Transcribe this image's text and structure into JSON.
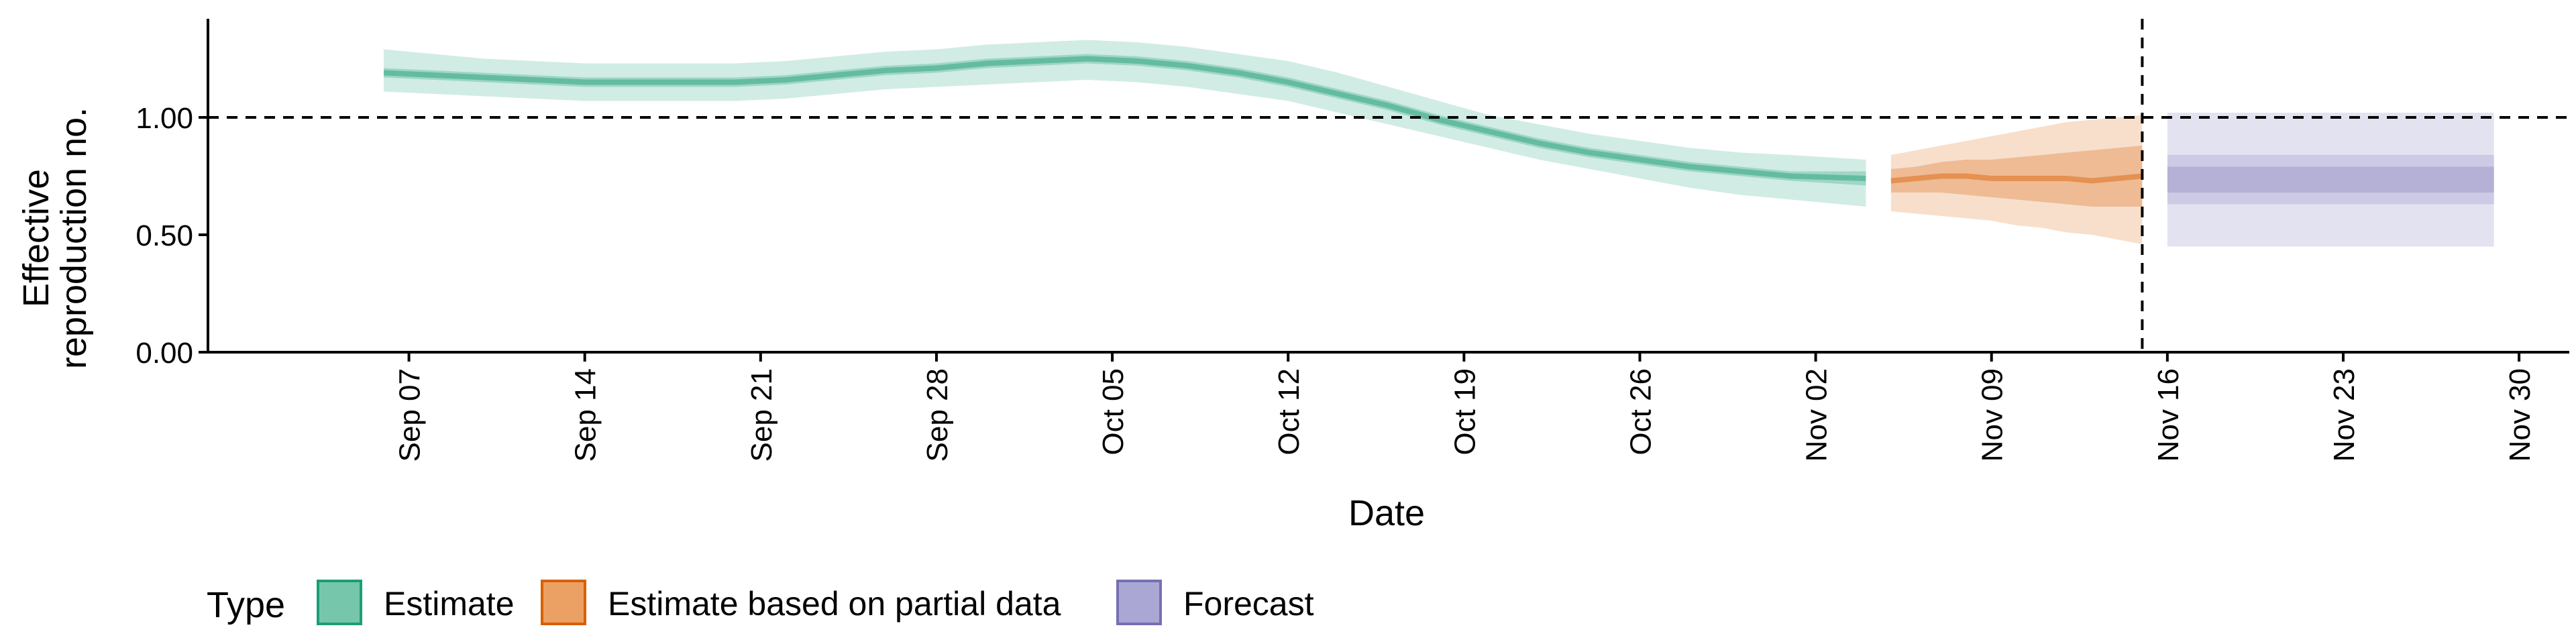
{
  "chart_data": {
    "type": "area",
    "title": "",
    "xlabel": "Date",
    "ylabel_lines": [
      "Effective",
      "reproduction no."
    ],
    "ylim": [
      0,
      1.42
    ],
    "y_ticks": [
      {
        "value": 0.0,
        "label": "0.00"
      },
      {
        "value": 0.5,
        "label": "0.50"
      },
      {
        "value": 1.0,
        "label": "1.00"
      }
    ],
    "x_range": [
      "2020-08-30",
      "2020-12-02"
    ],
    "x_ticks": [
      {
        "date": "2020-09-07",
        "label": "Sep 07"
      },
      {
        "date": "2020-09-14",
        "label": "Sep 14"
      },
      {
        "date": "2020-09-21",
        "label": "Sep 21"
      },
      {
        "date": "2020-09-28",
        "label": "Sep 28"
      },
      {
        "date": "2020-10-05",
        "label": "Oct 05"
      },
      {
        "date": "2020-10-12",
        "label": "Oct 12"
      },
      {
        "date": "2020-10-19",
        "label": "Oct 19"
      },
      {
        "date": "2020-10-26",
        "label": "Oct 26"
      },
      {
        "date": "2020-11-02",
        "label": "Nov 02"
      },
      {
        "date": "2020-11-09",
        "label": "Nov 09"
      },
      {
        "date": "2020-11-16",
        "label": "Nov 16"
      },
      {
        "date": "2020-11-23",
        "label": "Nov 23"
      },
      {
        "date": "2020-11-30",
        "label": "Nov 30"
      }
    ],
    "reference_lines": {
      "horizontal_y": 1.0,
      "vertical_date": "2020-11-15"
    },
    "legend": {
      "title": "Type",
      "position": "bottom",
      "entries": [
        {
          "label": "Estimate",
          "fill": "#76c6ab",
          "stroke": "#1b9e77"
        },
        {
          "label": "Estimate based on partial data",
          "fill": "#eba064",
          "stroke": "#d95f02"
        },
        {
          "label": "Forecast",
          "fill": "#aaa7d4",
          "stroke": "#7570b3"
        }
      ]
    },
    "series": [
      {
        "name": "Estimate",
        "fill": "#1b9e77",
        "x": [
          "2020-09-06",
          "2020-09-08",
          "2020-09-10",
          "2020-09-12",
          "2020-09-14",
          "2020-09-16",
          "2020-09-18",
          "2020-09-20",
          "2020-09-22",
          "2020-09-24",
          "2020-09-26",
          "2020-09-28",
          "2020-09-30",
          "2020-10-02",
          "2020-10-04",
          "2020-10-06",
          "2020-10-08",
          "2020-10-10",
          "2020-10-12",
          "2020-10-14",
          "2020-10-16",
          "2020-10-18",
          "2020-10-20",
          "2020-10-22",
          "2020-10-24",
          "2020-10-26",
          "2020-10-28",
          "2020-10-30",
          "2020-11-01",
          "2020-11-04"
        ],
        "median": [
          1.19,
          1.18,
          1.17,
          1.16,
          1.15,
          1.15,
          1.15,
          1.15,
          1.16,
          1.18,
          1.2,
          1.21,
          1.23,
          1.24,
          1.25,
          1.24,
          1.22,
          1.19,
          1.15,
          1.1,
          1.05,
          0.99,
          0.94,
          0.89,
          0.85,
          0.82,
          0.79,
          0.77,
          0.75,
          0.74
        ],
        "inner_lower": [
          1.17,
          1.16,
          1.15,
          1.14,
          1.13,
          1.13,
          1.13,
          1.13,
          1.14,
          1.16,
          1.18,
          1.19,
          1.21,
          1.22,
          1.23,
          1.22,
          1.2,
          1.17,
          1.13,
          1.08,
          1.03,
          0.97,
          0.92,
          0.87,
          0.83,
          0.8,
          0.77,
          0.75,
          0.73,
          0.71
        ],
        "inner_upper": [
          1.21,
          1.2,
          1.19,
          1.18,
          1.17,
          1.17,
          1.17,
          1.17,
          1.18,
          1.2,
          1.22,
          1.23,
          1.25,
          1.26,
          1.27,
          1.26,
          1.24,
          1.21,
          1.17,
          1.12,
          1.07,
          1.01,
          0.96,
          0.91,
          0.87,
          0.84,
          0.81,
          0.79,
          0.77,
          0.77
        ],
        "outer_lower": [
          1.11,
          1.1,
          1.09,
          1.08,
          1.07,
          1.07,
          1.07,
          1.07,
          1.08,
          1.1,
          1.12,
          1.13,
          1.14,
          1.15,
          1.16,
          1.15,
          1.13,
          1.1,
          1.07,
          1.02,
          0.97,
          0.92,
          0.87,
          0.82,
          0.78,
          0.74,
          0.7,
          0.67,
          0.65,
          0.62
        ],
        "outer_upper": [
          1.29,
          1.27,
          1.25,
          1.24,
          1.23,
          1.23,
          1.23,
          1.23,
          1.24,
          1.26,
          1.28,
          1.29,
          1.31,
          1.32,
          1.33,
          1.32,
          1.3,
          1.27,
          1.24,
          1.19,
          1.13,
          1.07,
          1.01,
          0.97,
          0.93,
          0.9,
          0.87,
          0.85,
          0.84,
          0.82
        ]
      },
      {
        "name": "Estimate based on partial data",
        "fill": "#d95f02",
        "x": [
          "2020-11-05",
          "2020-11-06",
          "2020-11-07",
          "2020-11-08",
          "2020-11-09",
          "2020-11-10",
          "2020-11-11",
          "2020-11-12",
          "2020-11-13",
          "2020-11-14",
          "2020-11-15"
        ],
        "median": [
          0.73,
          0.74,
          0.75,
          0.75,
          0.74,
          0.74,
          0.74,
          0.74,
          0.73,
          0.74,
          0.75
        ],
        "inner_lower": [
          0.68,
          0.68,
          0.68,
          0.67,
          0.66,
          0.65,
          0.64,
          0.63,
          0.62,
          0.62,
          0.62
        ],
        "inner_upper": [
          0.78,
          0.79,
          0.81,
          0.82,
          0.82,
          0.83,
          0.84,
          0.85,
          0.86,
          0.87,
          0.88
        ],
        "outer_lower": [
          0.6,
          0.59,
          0.58,
          0.57,
          0.56,
          0.54,
          0.53,
          0.51,
          0.5,
          0.48,
          0.46
        ],
        "outer_upper": [
          0.84,
          0.86,
          0.88,
          0.9,
          0.92,
          0.94,
          0.96,
          0.98,
          0.99,
          1.0,
          1.01
        ]
      },
      {
        "name": "Forecast",
        "fill": "#7570b3",
        "x": [
          "2020-11-16",
          "2020-11-29"
        ],
        "median": [
          0.73,
          0.73
        ],
        "inner_lower": [
          0.68,
          0.68
        ],
        "inner_upper": [
          0.79,
          0.79
        ],
        "middle_lower": [
          0.63,
          0.63
        ],
        "middle_upper": [
          0.84,
          0.84
        ],
        "outer_lower": [
          0.45,
          0.45
        ],
        "outer_upper": [
          1.02,
          1.02
        ]
      }
    ]
  }
}
